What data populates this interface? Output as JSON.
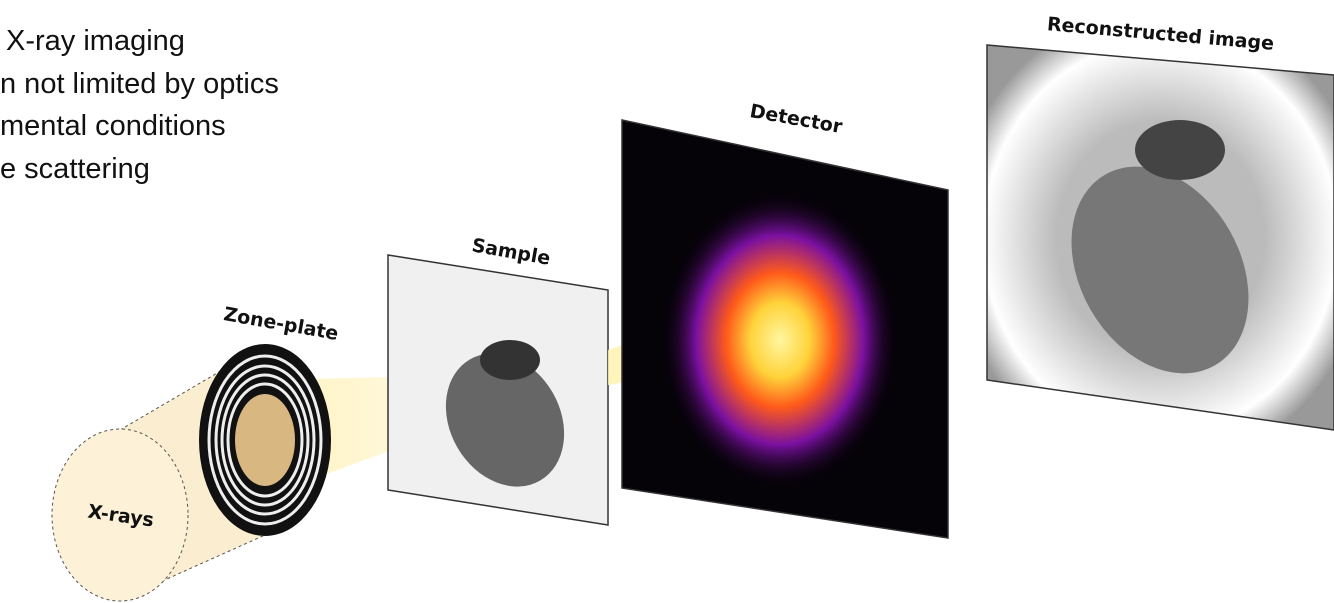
{
  "bullets": [
    "X-ray imaging",
    "n not limited by optics",
    "mental conditions",
    "e scattering"
  ],
  "labels": {
    "xrays": "X-rays",
    "zone_plate": "Zone-plate",
    "sample": "Sample",
    "detector": "Detector",
    "reconstructed": "Reconstructed image"
  }
}
